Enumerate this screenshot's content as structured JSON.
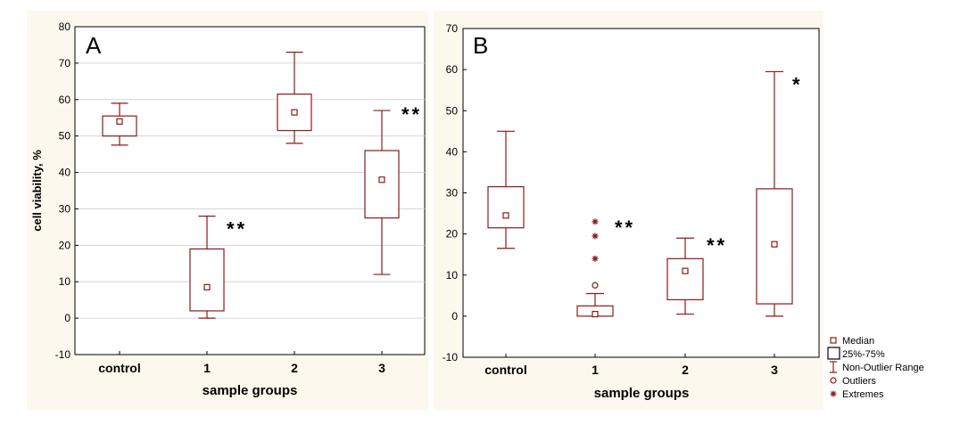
{
  "colors": {
    "panel_bg": "#fdf8ee",
    "plot_bg": "#ffffff",
    "box": "#8b1a1a",
    "grid": "#d6d6d6",
    "axis": "#000000",
    "text": "#000000"
  },
  "chart_data": [
    {
      "type": "box",
      "panel_label": "A",
      "title": "",
      "xlabel": "sample groups",
      "ylabel": "cell viability, %",
      "ylim": [
        -10,
        80
      ],
      "yticks": [
        -10,
        0,
        10,
        20,
        30,
        40,
        50,
        60,
        70,
        80
      ],
      "grid": true,
      "categories": [
        "control",
        "1",
        "2",
        "3"
      ],
      "boxes": [
        {
          "category": "control",
          "min": 47.5,
          "q1": 50,
          "median": 54,
          "q3": 55.5,
          "max": 59,
          "outliers": [],
          "extremes": [],
          "significance": ""
        },
        {
          "category": "1",
          "min": 0,
          "q1": 2,
          "median": 8.5,
          "q3": 19,
          "max": 28,
          "outliers": [],
          "extremes": [],
          "significance": "**"
        },
        {
          "category": "2",
          "min": 48,
          "q1": 51.5,
          "median": 56.5,
          "q3": 61.5,
          "max": 73,
          "outliers": [],
          "extremes": [],
          "significance": ""
        },
        {
          "category": "3",
          "min": 12,
          "q1": 27.5,
          "median": 38,
          "q3": 46,
          "max": 57,
          "outliers": [],
          "extremes": [],
          "significance": "**"
        }
      ]
    },
    {
      "type": "box",
      "panel_label": "B",
      "title": "",
      "xlabel": "sample groups",
      "ylabel": "",
      "ylim": [
        -10,
        70
      ],
      "yticks": [
        -10,
        0,
        10,
        20,
        30,
        40,
        50,
        60,
        70
      ],
      "grid": false,
      "categories": [
        "control",
        "1",
        "2",
        "3"
      ],
      "boxes": [
        {
          "category": "control",
          "min": 16.5,
          "q1": 21.5,
          "median": 24.5,
          "q3": 31.5,
          "max": 45,
          "outliers": [],
          "extremes": [],
          "significance": ""
        },
        {
          "category": "1",
          "min": 0,
          "q1": 0,
          "median": 0.5,
          "q3": 2.5,
          "max": 5.5,
          "outliers": [
            7.5
          ],
          "extremes": [
            14,
            19.5,
            23
          ],
          "significance": "**"
        },
        {
          "category": "2",
          "min": 0.5,
          "q1": 4,
          "median": 11,
          "q3": 14,
          "max": 19,
          "outliers": [],
          "extremes": [],
          "significance": "**"
        },
        {
          "category": "3",
          "min": 0,
          "q1": 3,
          "median": 17.5,
          "q3": 31,
          "max": 59.5,
          "outliers": [],
          "extremes": [],
          "significance": "*"
        }
      ]
    }
  ],
  "legend": {
    "position": "bottom-right",
    "items": [
      {
        "symbol": "median",
        "label": "Median"
      },
      {
        "symbol": "box",
        "label": "25%-75%"
      },
      {
        "symbol": "whisker",
        "label": "Non-Outlier Range"
      },
      {
        "symbol": "outlier",
        "label": "Outliers"
      },
      {
        "symbol": "extreme",
        "label": "Extremes"
      }
    ]
  }
}
